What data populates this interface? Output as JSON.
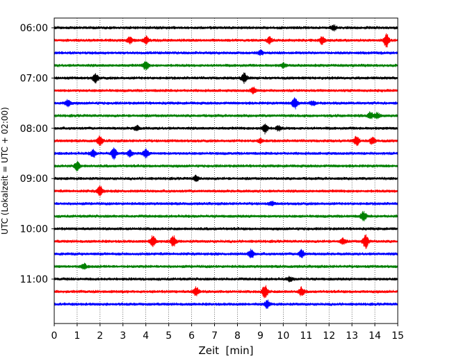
{
  "chart_data": {
    "type": "line",
    "title": "",
    "xlabel": "Zeit  [min]",
    "ylabel": "UTC (Lokalzeit = UTC + 02:00)",
    "xlim": [
      0,
      15
    ],
    "x_ticks": [
      "0",
      "1",
      "2",
      "3",
      "4",
      "5",
      "6",
      "7",
      "8",
      "9",
      "10",
      "11",
      "12",
      "13",
      "14",
      "15"
    ],
    "y_ticks": [
      "06:00",
      "07:00",
      "08:00",
      "09:00",
      "10:00",
      "11:00"
    ],
    "grid": "vertical-dotted",
    "line_colors": [
      "#000000",
      "#ff0000",
      "#0000ff",
      "#008000"
    ],
    "traces": [
      {
        "start": "06:00",
        "events": [
          [
            12.2,
            0.35
          ]
        ]
      },
      {
        "start": "06:15",
        "events": [
          [
            3.3,
            0.45
          ],
          [
            4.0,
            0.55
          ],
          [
            9.4,
            0.45
          ],
          [
            11.7,
            0.55
          ],
          [
            14.5,
            1.0
          ]
        ]
      },
      {
        "start": "06:30",
        "events": [
          [
            9.0,
            0.3
          ]
        ]
      },
      {
        "start": "06:45",
        "events": [
          [
            4.0,
            0.65
          ],
          [
            10.0,
            0.3
          ]
        ]
      },
      {
        "start": "07:00",
        "events": [
          [
            1.8,
            0.65
          ],
          [
            8.3,
            0.75
          ]
        ]
      },
      {
        "start": "07:15",
        "events": [
          [
            8.7,
            0.45
          ]
        ]
      },
      {
        "start": "07:30",
        "events": [
          [
            0.6,
            0.5
          ],
          [
            10.5,
            0.9
          ],
          [
            11.3,
            0.3
          ]
        ]
      },
      {
        "start": "07:45",
        "events": [
          [
            13.8,
            0.55
          ],
          [
            14.1,
            0.4
          ]
        ]
      },
      {
        "start": "08:00",
        "events": [
          [
            3.6,
            0.35
          ],
          [
            9.2,
            0.75
          ],
          [
            9.8,
            0.35
          ]
        ]
      },
      {
        "start": "08:15",
        "events": [
          [
            2.0,
            0.65
          ],
          [
            9.0,
            0.3
          ],
          [
            13.2,
            0.7
          ],
          [
            13.9,
            0.55
          ]
        ]
      },
      {
        "start": "08:30",
        "events": [
          [
            1.7,
            0.55
          ],
          [
            2.6,
            0.8
          ],
          [
            3.3,
            0.45
          ],
          [
            4.0,
            0.6
          ]
        ]
      },
      {
        "start": "08:45",
        "events": [
          [
            1.0,
            0.65
          ]
        ]
      },
      {
        "start": "09:00",
        "events": [
          [
            6.2,
            0.4
          ]
        ]
      },
      {
        "start": "09:15",
        "events": [
          [
            2.0,
            0.75
          ]
        ]
      },
      {
        "start": "09:30",
        "events": [
          [
            9.5,
            0.25
          ]
        ]
      },
      {
        "start": "09:45",
        "events": [
          [
            13.5,
            0.7
          ]
        ]
      },
      {
        "start": "10:00",
        "events": []
      },
      {
        "start": "10:15",
        "events": [
          [
            4.3,
            0.85
          ],
          [
            5.2,
            0.8
          ],
          [
            12.6,
            0.45
          ],
          [
            13.6,
            1.0
          ]
        ]
      },
      {
        "start": "10:30",
        "events": [
          [
            8.6,
            0.65
          ],
          [
            10.8,
            0.6
          ]
        ]
      },
      {
        "start": "10:45",
        "events": [
          [
            1.3,
            0.4
          ]
        ]
      },
      {
        "start": "11:00",
        "events": [
          [
            10.3,
            0.3
          ]
        ]
      },
      {
        "start": "11:15",
        "events": [
          [
            6.2,
            0.65
          ],
          [
            9.2,
            1.0
          ],
          [
            10.8,
            0.6
          ]
        ]
      },
      {
        "start": "11:30",
        "events": [
          [
            9.3,
            0.55
          ]
        ]
      }
    ]
  }
}
